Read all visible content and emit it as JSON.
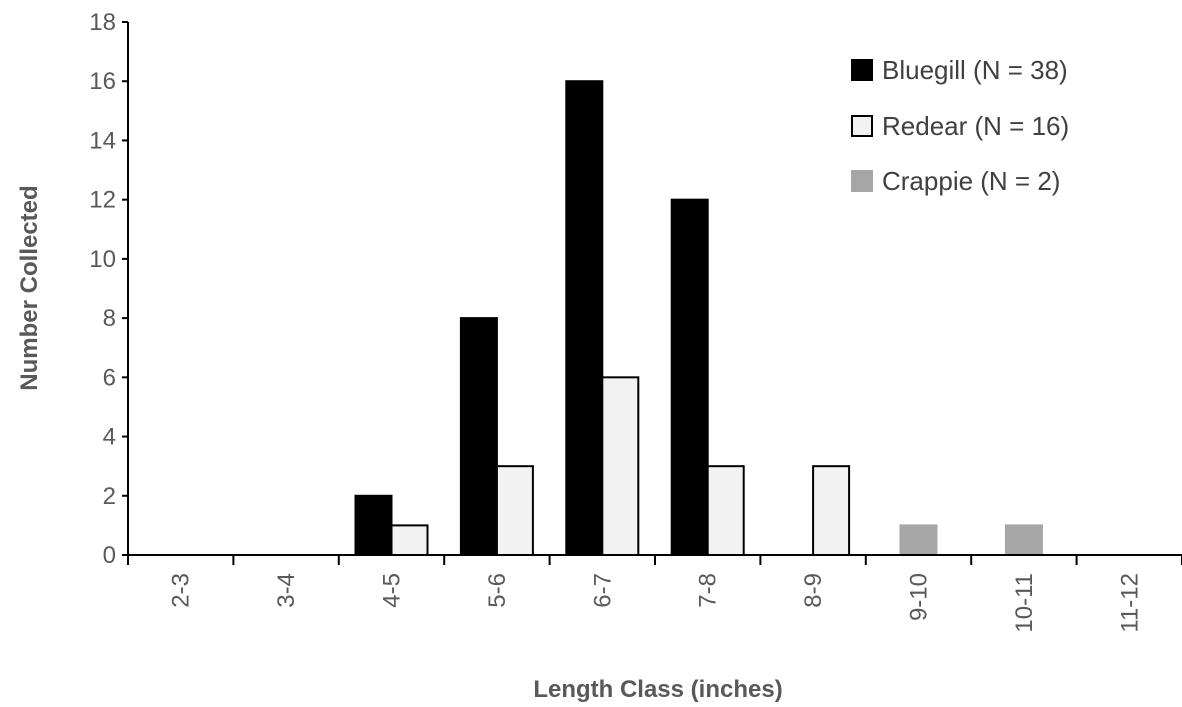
{
  "chart_data": {
    "type": "bar",
    "title": "",
    "xlabel": "Length Class (inches)",
    "ylabel": "Number Collected",
    "ylim": [
      0,
      18
    ],
    "yticks": [
      0,
      2,
      4,
      6,
      8,
      10,
      12,
      14,
      16,
      18
    ],
    "categories": [
      "2-3",
      "3-4",
      "4-5",
      "5-6",
      "6-7",
      "7-8",
      "8-9",
      "9-10",
      "10-11",
      "11-12"
    ],
    "legend_position": "top-right",
    "grid": false,
    "series": [
      {
        "name": "Bluegill (N = 38)",
        "color": "#000000",
        "stroke": "#000000",
        "values": [
          0,
          0,
          2,
          8,
          16,
          12,
          0,
          0,
          0,
          0
        ]
      },
      {
        "name": "Redear (N = 16)",
        "color": "#f2f2f2",
        "stroke": "#000000",
        "values": [
          0,
          0,
          1,
          3,
          6,
          3,
          3,
          0,
          0,
          0
        ]
      },
      {
        "name": "Crappie (N = 2)",
        "color": "#a6a6a6",
        "stroke": "#a6a6a6",
        "values": [
          0,
          0,
          0,
          0,
          0,
          0,
          0,
          1,
          1,
          0
        ]
      }
    ]
  }
}
